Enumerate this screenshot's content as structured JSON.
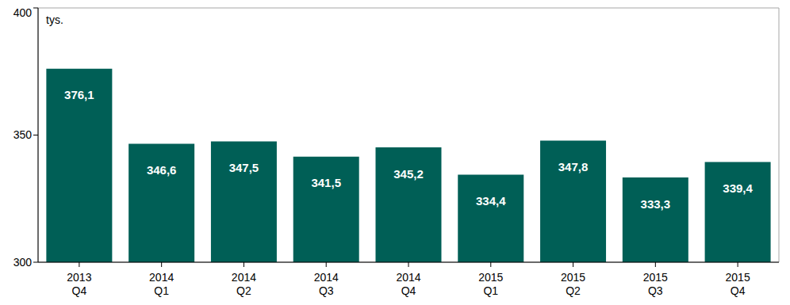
{
  "chart_data": {
    "type": "bar",
    "ylabel": "tys.",
    "categories": [
      "2013 Q4",
      "2014 Q1",
      "2014 Q2",
      "2014 Q3",
      "2014 Q4",
      "2015 Q1",
      "2015 Q2",
      "2015 Q3",
      "2015 Q4"
    ],
    "values": [
      376.1,
      346.6,
      347.5,
      341.5,
      345.2,
      334.4,
      347.8,
      333.3,
      339.4
    ],
    "value_labels": [
      "376,1",
      "346,6",
      "347,5",
      "341,5",
      "345,2",
      "334,4",
      "347,8",
      "333,3",
      "339,4"
    ],
    "data_labels": true,
    "color": "#005f56",
    "ylim": [
      300,
      400
    ],
    "yticks": [
      300,
      350,
      400
    ],
    "grid": false
  }
}
